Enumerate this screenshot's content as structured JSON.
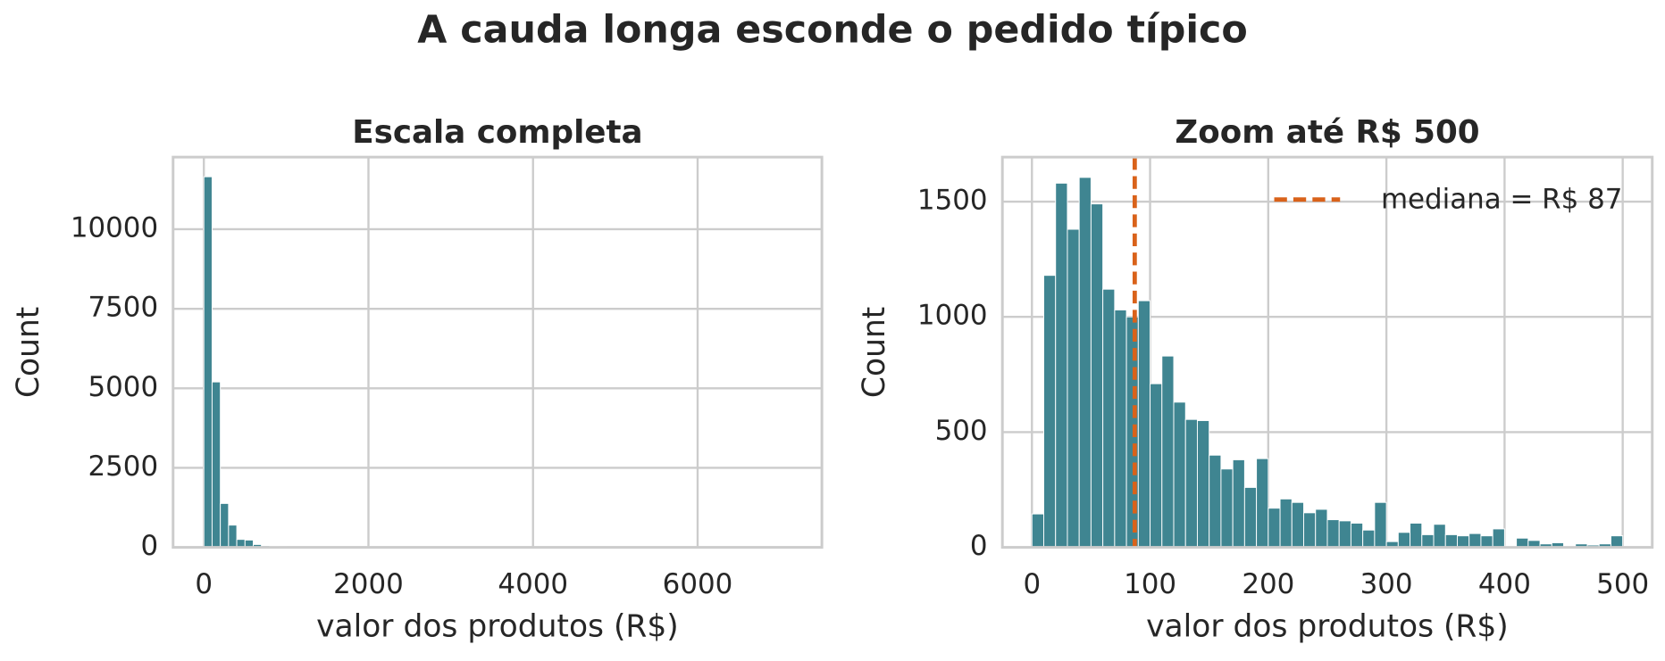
{
  "title": "A cauda longa esconde o pedido típico",
  "chart_data": [
    {
      "type": "histogram",
      "title": "Escala completa",
      "xlabel": "valor dos produtos (R$)",
      "ylabel": "Count",
      "color": "#3f8591",
      "grid": true,
      "bins": [
        0,
        100,
        200,
        300,
        400,
        500,
        600,
        700,
        800,
        900,
        1000,
        1100,
        1200,
        1300,
        1400,
        1500,
        1600,
        1700,
        1800,
        1900,
        2000,
        2100,
        2200,
        2300,
        2400,
        2500,
        2600,
        2700,
        2800,
        2900,
        3000,
        3100,
        3200,
        3300,
        3400,
        3500,
        3600,
        3700,
        3800,
        3900,
        4000,
        4100,
        4200,
        4300,
        4400,
        4500,
        4600,
        4700,
        4800,
        4900,
        5000,
        5100,
        5200,
        5300,
        5400,
        5500,
        5600,
        5700,
        5800,
        5900,
        6000,
        6100,
        6200,
        6300,
        6400,
        6500,
        6600,
        6700,
        6800,
        6900,
        7000,
        7100
      ],
      "counts": [
        11650,
        5200,
        1380,
        700,
        250,
        230,
        90,
        50,
        30,
        20,
        15,
        12,
        10,
        8,
        6,
        5,
        4,
        3,
        3,
        2,
        2,
        2,
        1,
        1,
        1,
        1,
        1,
        0,
        0,
        0,
        0,
        0,
        0,
        0,
        0,
        0,
        0,
        0,
        0,
        0,
        0,
        0,
        0,
        0,
        0,
        0,
        0,
        0,
        0,
        0,
        0,
        0,
        0,
        0,
        0,
        0,
        0,
        0,
        0,
        0,
        0,
        0,
        0,
        0,
        0,
        0,
        0,
        0,
        0,
        0,
        1
      ],
      "xlim": [
        -374,
        7510
      ],
      "ylim": [
        0,
        12267
      ],
      "xticks": [
        0,
        2000,
        4000,
        6000
      ],
      "yticks": [
        0,
        2500,
        5000,
        7500,
        10000
      ]
    },
    {
      "type": "histogram",
      "title": "Zoom até R$ 500",
      "xlabel": "valor dos produtos (R$)",
      "ylabel": "Count",
      "color": "#3f8591",
      "grid": true,
      "legend": "upper right",
      "bins": [
        0,
        10,
        20,
        30,
        40,
        50,
        60,
        70,
        80,
        90,
        100,
        110,
        120,
        130,
        140,
        150,
        160,
        170,
        180,
        190,
        200,
        210,
        220,
        230,
        240,
        250,
        260,
        270,
        280,
        290,
        300,
        310,
        320,
        330,
        340,
        350,
        360,
        370,
        380,
        390,
        400,
        410,
        420,
        430,
        440,
        450,
        460,
        470,
        480,
        490,
        500
      ],
      "counts": [
        145,
        1180,
        1580,
        1380,
        1605,
        1490,
        1120,
        1030,
        1000,
        1070,
        710,
        830,
        630,
        555,
        550,
        400,
        340,
        380,
        260,
        385,
        170,
        210,
        195,
        150,
        165,
        120,
        115,
        105,
        75,
        195,
        25,
        65,
        105,
        55,
        100,
        55,
        50,
        60,
        50,
        80,
        5,
        40,
        30,
        15,
        20,
        5,
        15,
        10,
        15,
        50
      ],
      "median": {
        "value": 87,
        "label": "mediana = R$ 87",
        "color": "#d9621a"
      },
      "xlim": [
        -25,
        525
      ],
      "ylim": [
        0,
        1693
      ],
      "xticks": [
        0,
        100,
        200,
        300,
        400,
        500
      ],
      "yticks": [
        0,
        500,
        1000,
        1500
      ]
    }
  ]
}
